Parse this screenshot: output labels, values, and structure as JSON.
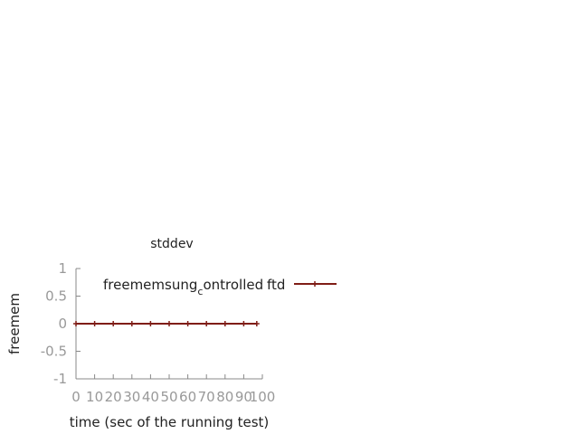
{
  "chart_data": {
    "type": "line",
    "title": "stddev",
    "xlabel": "time (sec of the running test)",
    "ylabel": "freemem",
    "xlim": [
      0,
      100
    ],
    "ylim": [
      -1,
      1
    ],
    "xticks": [
      "0",
      "10",
      "20",
      "30",
      "40",
      "50",
      "60",
      "70",
      "80",
      "90",
      "100"
    ],
    "yticks": [
      "1",
      "0.5",
      "0",
      "-0.5",
      "-1"
    ],
    "grid": false,
    "legend_position": "top-right",
    "legend_label_parts": {
      "base": "freememsung",
      "subscript": "c",
      "rest": "ontrolled",
      "overlap": "ftd"
    },
    "series": [
      {
        "name": "freememsung_controlled ftd",
        "color": "#7f1d16",
        "marker": "plus",
        "x": [
          0,
          10,
          20,
          30,
          40,
          50,
          60,
          70,
          80,
          90,
          97
        ],
        "y": [
          0,
          0,
          0,
          0,
          0,
          0,
          0,
          0,
          0,
          0,
          0
        ]
      }
    ]
  }
}
